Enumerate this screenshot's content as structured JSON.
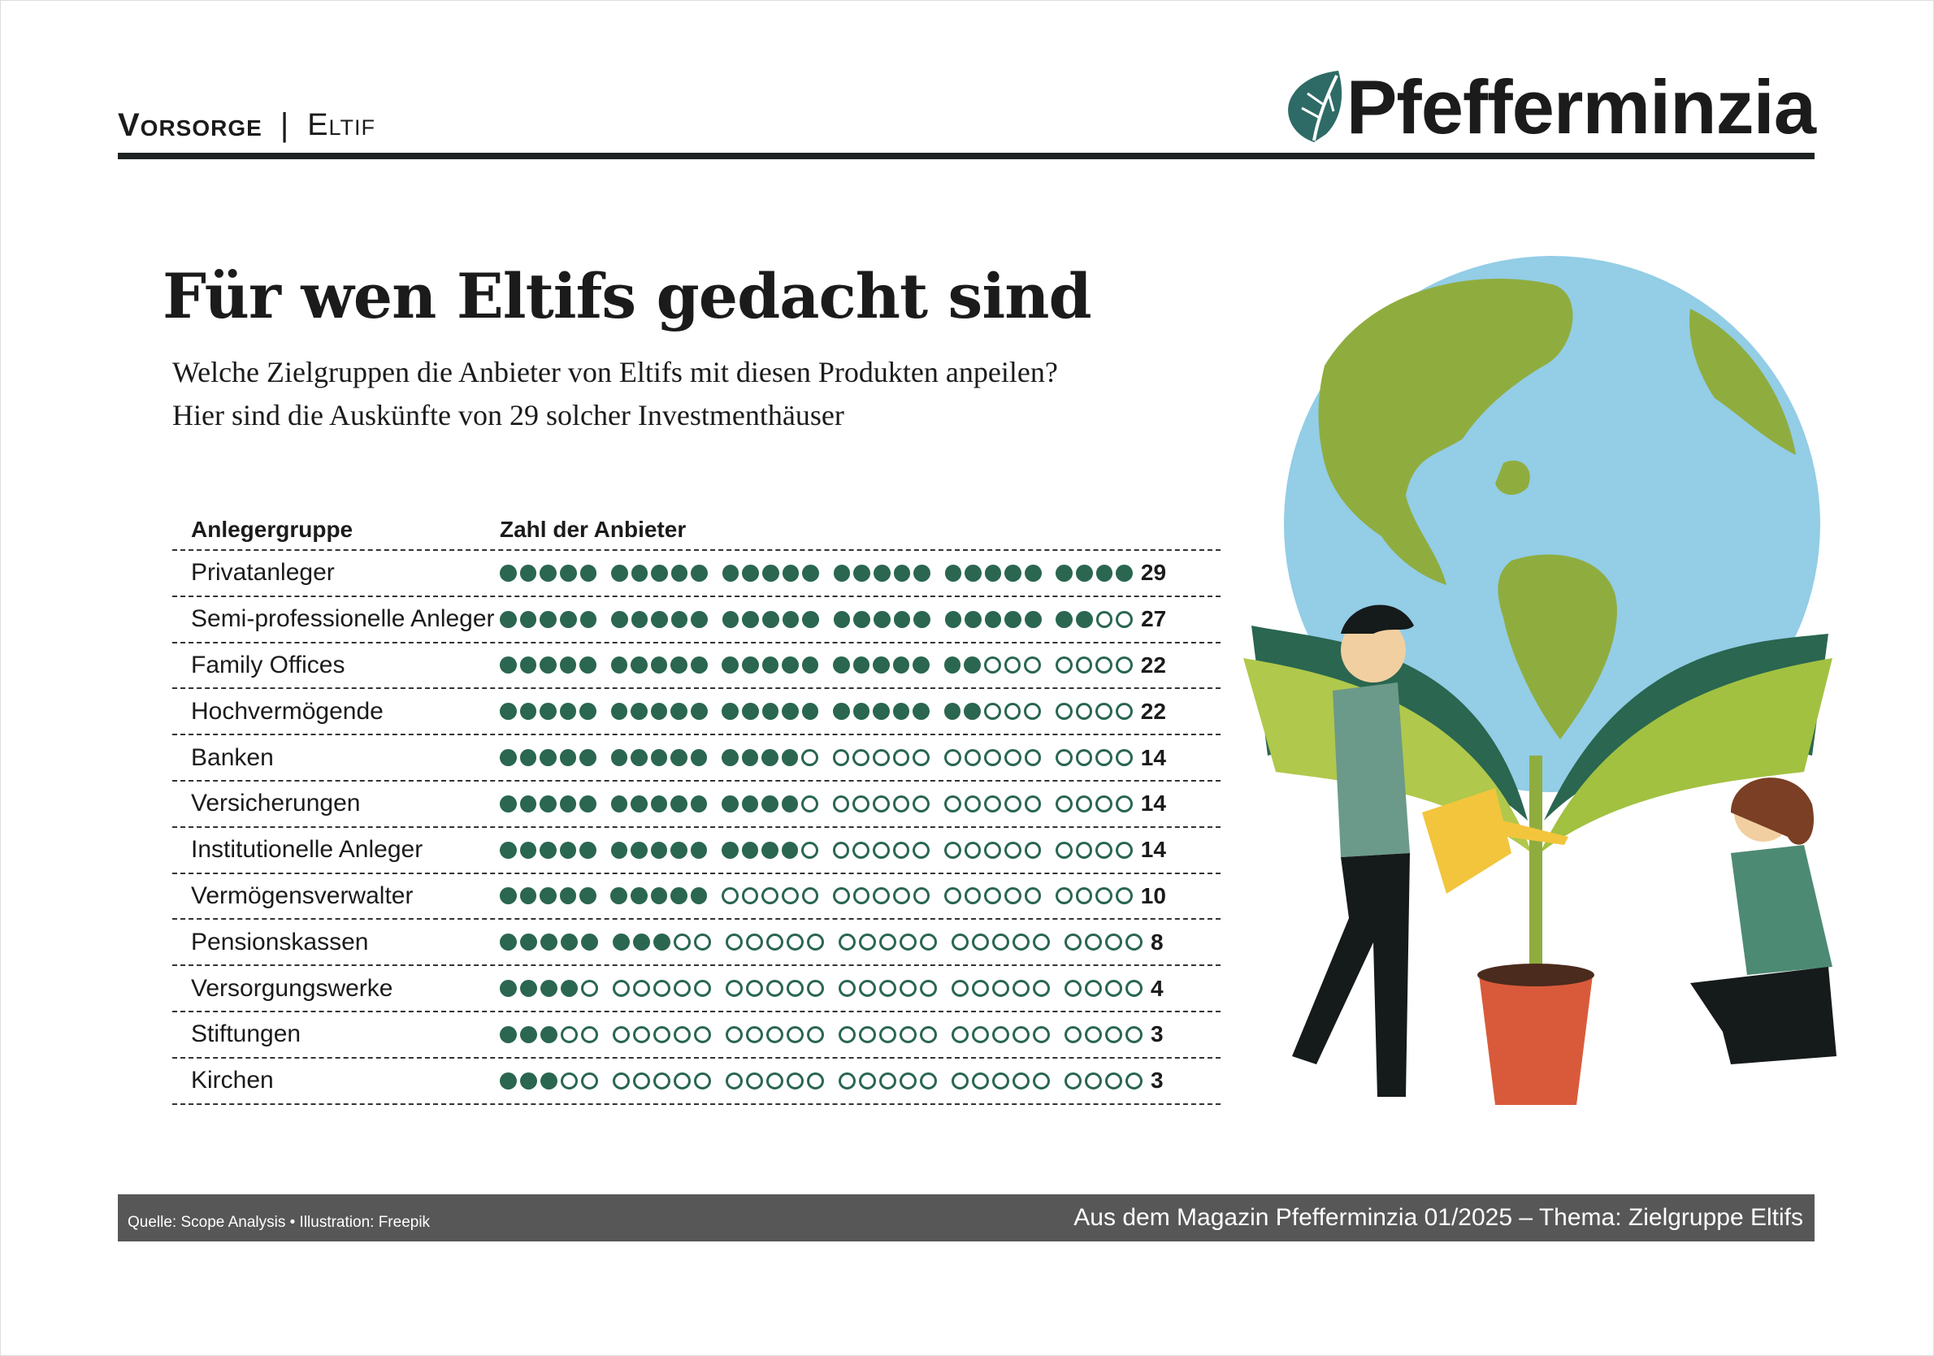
{
  "header": {
    "section": "Vorsorge",
    "separator": "|",
    "subsection": "Eltif",
    "logo": "Pfefferminzia"
  },
  "title": "Für wen Eltifs gedacht sind",
  "subtitle": [
    "Welche Zielgruppen die Anbieter von Eltifs mit diesen Produkten anpeilen?",
    "Hier sind die Auskünfte von 29 solcher Investmenthäuser"
  ],
  "colors": {
    "accent": "#2a6650",
    "footer": "#575757"
  },
  "chart_data": {
    "type": "table",
    "columns": [
      "Anlegergruppe",
      "Zahl der Anbieter"
    ],
    "total": 29,
    "rows": [
      {
        "label": "Privatanleger",
        "value": 29
      },
      {
        "label": "Semi-professionelle Anleger",
        "value": 27
      },
      {
        "label": "Family Offices",
        "value": 22
      },
      {
        "label": "Hochvermögende",
        "value": 22
      },
      {
        "label": "Banken",
        "value": 14
      },
      {
        "label": "Versicherungen",
        "value": 14
      },
      {
        "label": "Institutionelle Anleger",
        "value": 14
      },
      {
        "label": "Vermögensverwalter",
        "value": 10
      },
      {
        "label": "Pensionskassen",
        "value": 8
      },
      {
        "label": "Versorgungswerke",
        "value": 4
      },
      {
        "label": "Stiftungen",
        "value": 3
      },
      {
        "label": "Kirchen",
        "value": 3
      }
    ]
  },
  "footer": {
    "source": "Quelle: Scope Analysis • Illustration: Freepik",
    "magazine": "Aus dem Magazin Pfefferminzia 01/2025 – Thema: Zielgruppe Eltifs"
  }
}
